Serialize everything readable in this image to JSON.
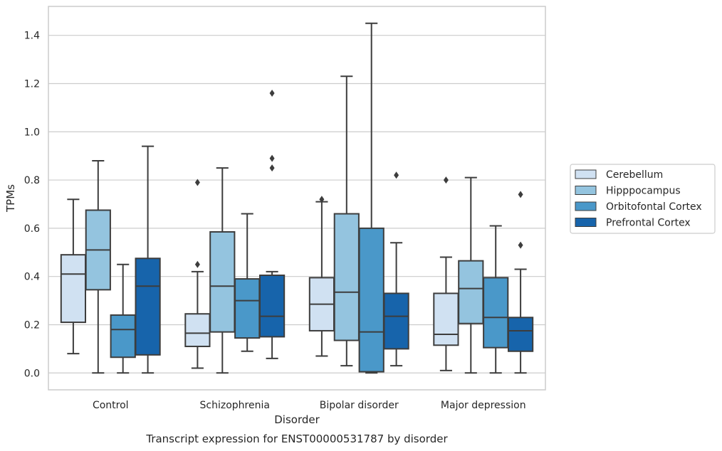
{
  "chart_data": {
    "type": "box",
    "xlabel": "Disorder",
    "ylabel": "TPMs",
    "caption": "Transcript expression for ENST00000531787 by disorder",
    "ylim": [
      -0.07,
      1.52
    ],
    "yticks": [
      "0.0",
      "0.2",
      "0.4",
      "0.6",
      "0.8",
      "1.0",
      "1.2",
      "1.4"
    ],
    "grid": "horizontal",
    "legend_position": "right",
    "categories": [
      "Control",
      "Schizophrenia",
      "Bipolar disorder",
      "Major depression"
    ],
    "series": [
      {
        "name": "Cerebellum",
        "color": "#d0e1f2",
        "boxes": [
          {
            "min": 0.08,
            "q1": 0.21,
            "median": 0.41,
            "q3": 0.49,
            "max": 0.72,
            "outliers": []
          },
          {
            "min": 0.02,
            "q1": 0.11,
            "median": 0.165,
            "q3": 0.245,
            "max": 0.42,
            "outliers": [
              0.45,
              0.79
            ]
          },
          {
            "min": 0.07,
            "q1": 0.175,
            "median": 0.285,
            "q3": 0.395,
            "max": 0.71,
            "outliers": [
              0.72
            ]
          },
          {
            "min": 0.01,
            "q1": 0.115,
            "median": 0.16,
            "q3": 0.33,
            "max": 0.48,
            "outliers": [
              0.8
            ]
          }
        ]
      },
      {
        "name": "Hipppocampus",
        "color": "#94c4df",
        "boxes": [
          {
            "min": 0.0,
            "q1": 0.345,
            "median": 0.51,
            "q3": 0.675,
            "max": 0.88,
            "outliers": []
          },
          {
            "min": 0.0,
            "q1": 0.17,
            "median": 0.36,
            "q3": 0.585,
            "max": 0.85,
            "outliers": []
          },
          {
            "min": 0.03,
            "q1": 0.135,
            "median": 0.335,
            "q3": 0.66,
            "max": 1.23,
            "outliers": []
          },
          {
            "min": 0.0,
            "q1": 0.205,
            "median": 0.35,
            "q3": 0.465,
            "max": 0.81,
            "outliers": []
          }
        ]
      },
      {
        "name": "Orbitofontal Cortex",
        "color": "#4a98c9",
        "boxes": [
          {
            "min": 0.0,
            "q1": 0.065,
            "median": 0.18,
            "q3": 0.24,
            "max": 0.45,
            "outliers": []
          },
          {
            "min": 0.09,
            "q1": 0.145,
            "median": 0.3,
            "q3": 0.39,
            "max": 0.66,
            "outliers": []
          },
          {
            "min": 0.0,
            "q1": 0.005,
            "median": 0.17,
            "q3": 0.6,
            "max": 1.45,
            "outliers": []
          },
          {
            "min": 0.0,
            "q1": 0.105,
            "median": 0.23,
            "q3": 0.395,
            "max": 0.61,
            "outliers": []
          }
        ]
      },
      {
        "name": "Prefrontal Cortex",
        "color": "#1764ab",
        "boxes": [
          {
            "min": 0.0,
            "q1": 0.075,
            "median": 0.36,
            "q3": 0.475,
            "max": 0.94,
            "outliers": []
          },
          {
            "min": 0.06,
            "q1": 0.15,
            "median": 0.235,
            "q3": 0.405,
            "max": 0.42,
            "outliers": [
              0.85,
              0.89,
              1.16
            ]
          },
          {
            "min": 0.03,
            "q1": 0.1,
            "median": 0.235,
            "q3": 0.33,
            "max": 0.54,
            "outliers": [
              0.82
            ]
          },
          {
            "min": 0.0,
            "q1": 0.09,
            "median": 0.175,
            "q3": 0.23,
            "max": 0.43,
            "outliers": [
              0.53,
              0.74
            ]
          }
        ]
      }
    ]
  }
}
